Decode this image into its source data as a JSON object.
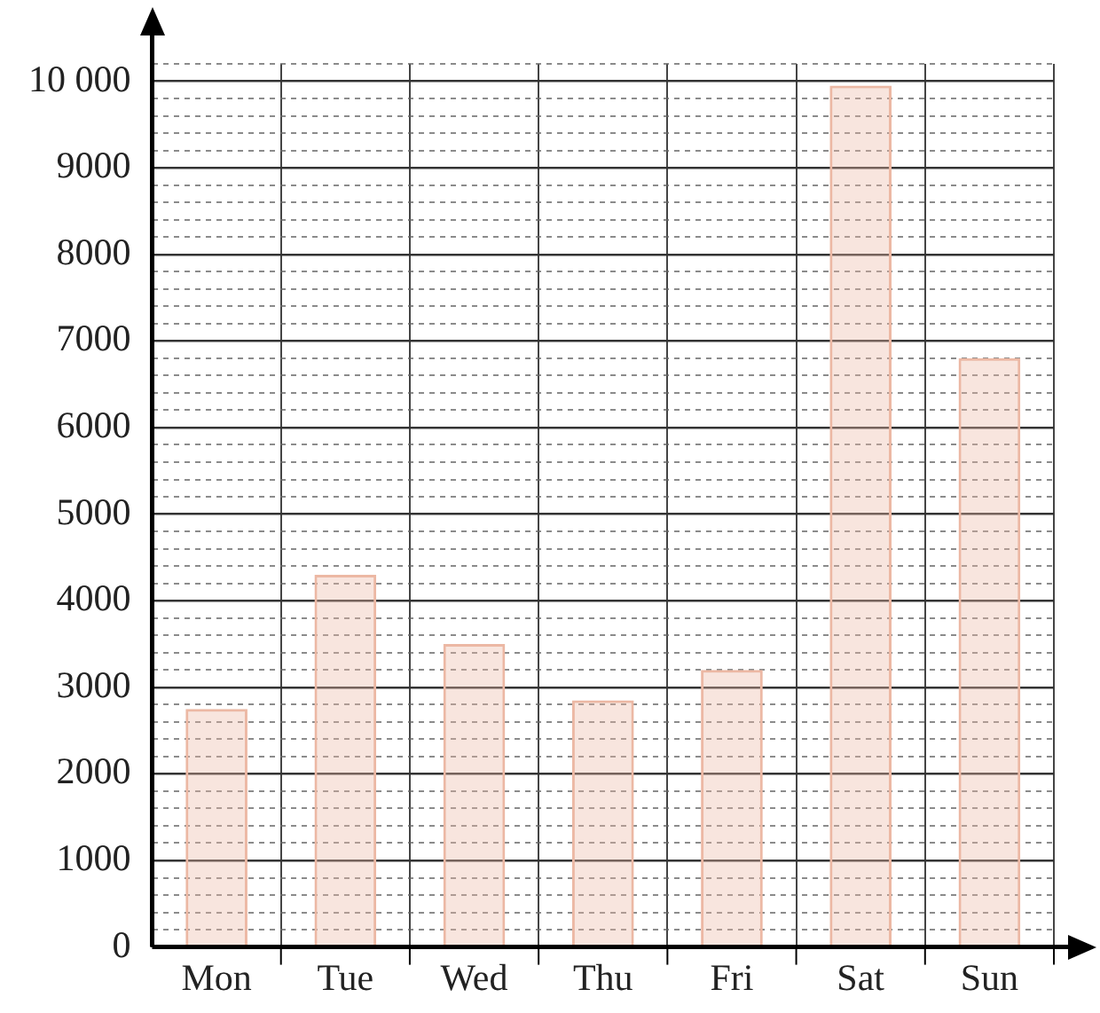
{
  "chart_data": {
    "type": "bar",
    "categories": [
      "Mon",
      "Tue",
      "Wed",
      "Thu",
      "Fri",
      "Sat",
      "Sun"
    ],
    "values": [
      2750,
      4300,
      3500,
      2850,
      3200,
      9950,
      6800
    ],
    "color": "#ecb8a4",
    "ylim": [
      0,
      10200
    ],
    "yticks": [
      0,
      {
        "value": 200,
        "label": null
      },
      {
        "value": 400,
        "label": null
      },
      {
        "value": 600,
        "label": null
      },
      {
        "value": 800,
        "label": null
      },
      1000,
      {
        "value": 1200,
        "label": null
      },
      {
        "value": 1400,
        "label": null
      },
      {
        "value": 1600,
        "label": null
      },
      {
        "value": 1800,
        "label": null
      },
      2000,
      {
        "value": 2200,
        "label": null
      },
      {
        "value": 2400,
        "label": null
      },
      {
        "value": 2600,
        "label": null
      },
      {
        "value": 2800,
        "label": null
      },
      3000,
      {
        "value": 3200,
        "label": null
      },
      {
        "value": 3400,
        "label": null
      },
      {
        "value": 3600,
        "label": null
      },
      {
        "value": 3800,
        "label": null
      },
      4000,
      {
        "value": 4200,
        "label": null
      },
      {
        "value": 4400,
        "label": null
      },
      {
        "value": 4600,
        "label": null
      },
      {
        "value": 4800,
        "label": null
      },
      5000,
      {
        "value": 5200,
        "label": null
      },
      {
        "value": 5400,
        "label": null
      },
      {
        "value": 5600,
        "label": null
      },
      {
        "value": 5800,
        "label": null
      },
      6000,
      {
        "value": 6200,
        "label": null
      },
      {
        "value": 6400,
        "label": null
      },
      {
        "value": 6600,
        "label": null
      },
      {
        "value": 6800,
        "label": null
      },
      7000,
      {
        "value": 7200,
        "label": null
      },
      {
        "value": 7400,
        "label": null
      },
      {
        "value": 7600,
        "label": null
      },
      {
        "value": 7800,
        "label": null
      },
      8000,
      {
        "value": 8200,
        "label": null
      },
      {
        "value": 8400,
        "label": null
      },
      {
        "value": 8600,
        "label": null
      },
      {
        "value": 8800,
        "label": null
      },
      9000,
      {
        "value": 9200,
        "label": null
      },
      {
        "value": 9400,
        "label": null
      },
      {
        "value": 9600,
        "label": null
      },
      {
        "value": 9800,
        "label": null
      },
      {
        "value": 10000,
        "label": "10 000"
      },
      {
        "value": 10200,
        "label": null
      }
    ],
    "grid": true
  }
}
